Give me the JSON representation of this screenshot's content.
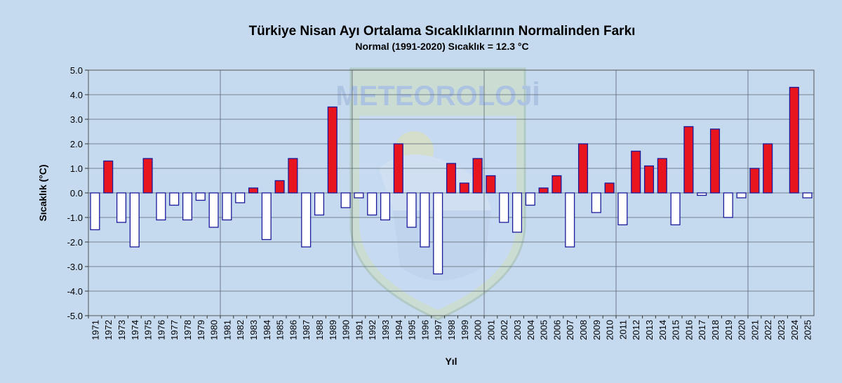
{
  "chart_data": {
    "type": "bar",
    "title": "Türkiye Nisan Ayı Ortalama Sıcaklıklarının Normalinden  Farkı",
    "subtitle": "Normal (1991-2020) Sıcaklık = 12.3 °C",
    "xlabel": "Yıl",
    "ylabel": "Sıcaklık (°C)",
    "ylim": [
      -5.0,
      5.0
    ],
    "yticks": [
      "5.0",
      "4.0",
      "3.0",
      "2.0",
      "1.0",
      "0.0",
      "-1.0",
      "-2.0",
      "-3.0",
      "-4.0",
      "-5.0"
    ],
    "grid": true,
    "categories": [
      "1971",
      "1972",
      "1973",
      "1974",
      "1975",
      "1976",
      "1977",
      "1978",
      "1979",
      "1980",
      "1981",
      "1982",
      "1983",
      "1984",
      "1985",
      "1986",
      "1987",
      "1988",
      "1989",
      "1990",
      "1991",
      "1992",
      "1993",
      "1994",
      "1995",
      "1996",
      "1997",
      "1998",
      "1999",
      "2000",
      "2001",
      "2002",
      "2003",
      "2004",
      "2005",
      "2006",
      "2007",
      "2008",
      "2009",
      "2010",
      "2011",
      "2012",
      "2013",
      "2014",
      "2015",
      "2016",
      "2017",
      "2018",
      "2019",
      "2020",
      "2021",
      "2022",
      "2023",
      "2024",
      "2025"
    ],
    "values": [
      -1.5,
      1.3,
      -1.2,
      -2.2,
      1.4,
      -1.1,
      -0.5,
      -1.1,
      -0.3,
      -1.4,
      -1.1,
      -0.4,
      0.2,
      -1.9,
      0.5,
      1.4,
      -2.2,
      -0.9,
      3.5,
      -0.6,
      -0.2,
      -0.9,
      -1.1,
      2.0,
      -1.4,
      -2.2,
      -3.3,
      1.2,
      0.4,
      1.4,
      0.7,
      -1.2,
      -1.6,
      -0.5,
      0.2,
      0.7,
      -2.2,
      2.0,
      -0.8,
      0.4,
      -1.3,
      1.7,
      1.1,
      1.4,
      -1.3,
      2.7,
      -0.1,
      2.6,
      -1.0,
      -0.2,
      1.0,
      2.0,
      null,
      4.3,
      -0.2
    ],
    "colors": {
      "positive": "#e8141e",
      "negative": "#ffffff",
      "bar_stroke": "#1a1a9a",
      "plot_area": "#c5d9ef",
      "grid": "#5a6470"
    },
    "watermark": "METEOROLOJİ"
  }
}
